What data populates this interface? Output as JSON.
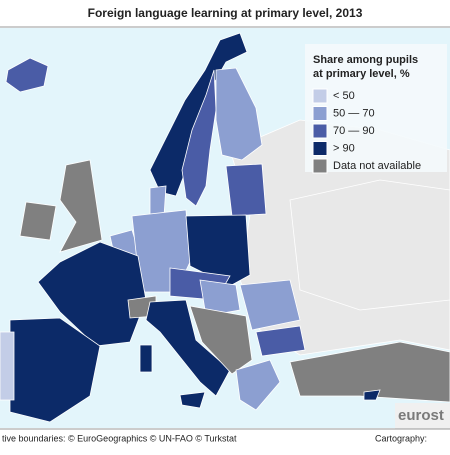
{
  "title": "Foreign language learning at primary level, 2013",
  "legend": {
    "title_line1": "Share among pupils",
    "title_line2": "at primary level, %",
    "items": [
      {
        "label": "< 50",
        "color": "#c3cde7"
      },
      {
        "label": "50 — 70",
        "color": "#8c9fd1"
      },
      {
        "label": "70 — 90",
        "color": "#4a5ca6"
      },
      {
        "label": "> 90",
        "color": "#0c2a68"
      },
      {
        "label": "Data not available",
        "color": "#808080"
      }
    ]
  },
  "footer": {
    "left": "tive boundaries: © EuroGeographics © UN-FAO © Turkstat",
    "right": "Cartography: "
  },
  "logo": "eurost"
}
